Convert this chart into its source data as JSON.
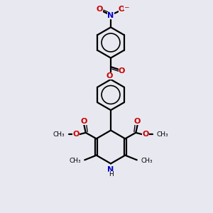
{
  "background_color": "#e8e8f0",
  "bond_color": "#000000",
  "nitrogen_color": "#0000cc",
  "oxygen_color": "#cc0000",
  "figsize": [
    3.0,
    3.0
  ],
  "dpi": 100,
  "xlim": [
    0,
    10
  ],
  "ylim": [
    0,
    10
  ]
}
